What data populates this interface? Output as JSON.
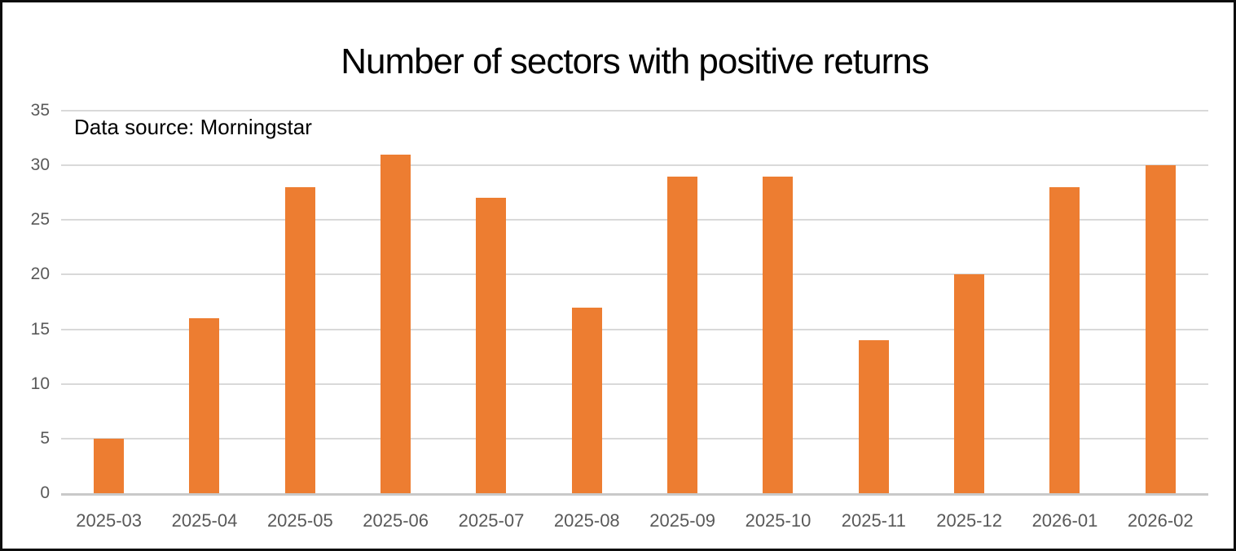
{
  "window": {
    "background_color": "#ffffff",
    "border_color": "#0d0d0d"
  },
  "chart_data": {
    "type": "bar",
    "title": "Number of sectors with positive returns",
    "annotation": "Data source: Morningstar",
    "categories": [
      "2025-03",
      "2025-04",
      "2025-05",
      "2025-06",
      "2025-07",
      "2025-08",
      "2025-09",
      "2025-10",
      "2025-11",
      "2025-12",
      "2026-01",
      "2026-02"
    ],
    "values": [
      5,
      16,
      28,
      31,
      27,
      17,
      29,
      29,
      14,
      20,
      28,
      30
    ],
    "xlabel": "",
    "ylabel": "",
    "ylim": [
      0,
      35
    ],
    "y_ticks": [
      0,
      5,
      10,
      15,
      20,
      25,
      30,
      35
    ],
    "grid": true,
    "legend": "none",
    "bar_color": "#ED7D31",
    "gridline_color": "#D9D9D9",
    "axis_line_color": "#C9C9C9",
    "tick_label_color": "#595959",
    "title_color": "#000000"
  }
}
